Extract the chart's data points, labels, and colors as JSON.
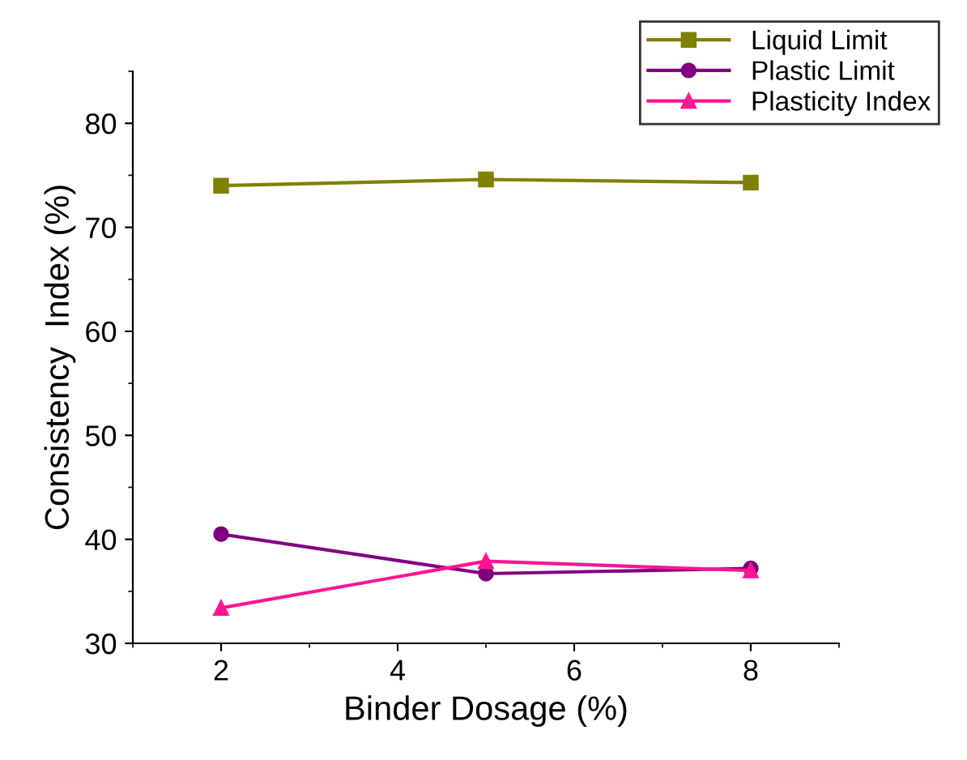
{
  "chart_data": {
    "type": "line",
    "xlabel": "Binder Dosage (%)",
    "ylabel": "Consistency  Index (%)",
    "x": [
      2,
      5,
      8
    ],
    "xlim": [
      1,
      9
    ],
    "xticks": [
      2,
      4,
      6,
      8
    ],
    "ylim": [
      30,
      85
    ],
    "yticks": [
      30,
      40,
      50,
      60,
      70,
      80
    ],
    "line_style": "solid",
    "grid": false,
    "legend": "top right",
    "series": [
      {
        "name": "Liquid Limit",
        "color": "#808000",
        "marker": "square",
        "values": [
          74.0,
          74.6,
          74.3
        ]
      },
      {
        "name": "Plastic Limit",
        "color": "#800080",
        "marker": "circle",
        "values": [
          40.5,
          36.7,
          37.2
        ]
      },
      {
        "name": "Plasticity Index",
        "color": "#ff1493",
        "marker": "triangle",
        "values": [
          33.4,
          37.9,
          37.0
        ]
      }
    ]
  }
}
